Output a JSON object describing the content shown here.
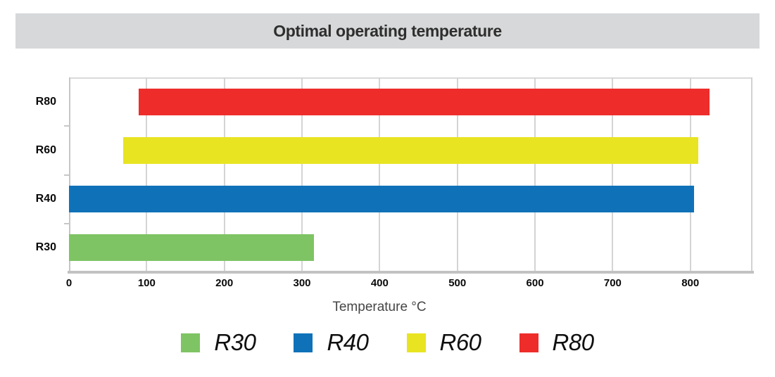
{
  "header": {
    "title": "Optimal operating temperature",
    "background": "#D7D8D9"
  },
  "chart_data": {
    "type": "bar",
    "orientation": "horizontal",
    "title": "Optimal operating temperature",
    "xlabel": "Temperature °C",
    "xlim": [
      0,
      880
    ],
    "xticks": [
      0,
      100,
      200,
      300,
      400,
      500,
      600,
      700,
      800
    ],
    "grid": true,
    "categories": [
      "R80",
      "R60",
      "R40",
      "R30"
    ],
    "bars": [
      {
        "label": "R80",
        "start": 90,
        "end": 825,
        "color": "#EE2D2B"
      },
      {
        "label": "R60",
        "start": 70,
        "end": 810,
        "color": "#E8E421"
      },
      {
        "label": "R40",
        "start": 0,
        "end": 805,
        "color": "#0F72B9"
      },
      {
        "label": "R30",
        "start": 0,
        "end": 315,
        "color": "#7EC464"
      }
    ],
    "legend_position": "bottom",
    "legend": [
      {
        "label": "R30",
        "color": "#7EC464"
      },
      {
        "label": "R40",
        "color": "#0F72B9"
      },
      {
        "label": "R60",
        "color": "#E8E421"
      },
      {
        "label": "R80",
        "color": "#EE2D2B"
      }
    ],
    "colors": {
      "gridline": "#D4D4D4",
      "axis_line": "#C6C6C6",
      "bottom_axis": "#C2C2C2",
      "tick_label": "#0A0A0A",
      "axis_title": "#454545"
    }
  }
}
